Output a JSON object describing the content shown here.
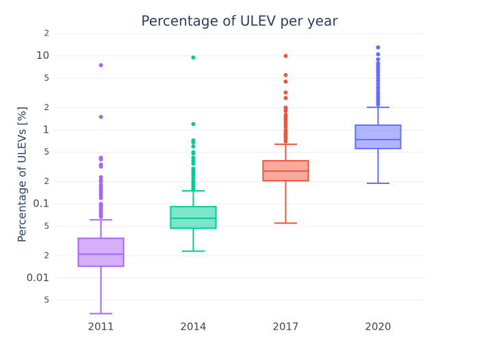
{
  "chart_data": {
    "type": "box",
    "title": "Percentage of ULEV per year",
    "y_label": "Percentage of ULEVs [%]",
    "y_log": true,
    "grid": true,
    "ylim": [
      0.0032,
      27
    ],
    "yticks": [
      {
        "value": 0.005,
        "label": "5"
      },
      0.01,
      {
        "value": 0.02,
        "label": "2"
      },
      {
        "value": 0.05,
        "label": "5"
      },
      0.1,
      {
        "value": 0.2,
        "label": "2"
      },
      {
        "value": 0.5,
        "label": "5"
      },
      1,
      {
        "value": 2,
        "label": "2"
      },
      {
        "value": 5,
        "label": "5"
      },
      10,
      {
        "value": 20,
        "label": "2"
      }
    ],
    "categories": [
      "2011",
      "2014",
      "2017",
      "2020"
    ],
    "boxes": [
      {
        "color": "#ab63fa",
        "lowerfence": 0.0033,
        "q1": 0.0144,
        "median": 0.021,
        "q3": 0.0344,
        "upperfence": 0.061,
        "outliers": [
          7.5,
          1.5,
          0.42,
          0.4,
          0.34,
          0.32,
          0.23,
          0.21,
          0.2,
          0.18,
          0.17,
          0.16,
          0.15,
          0.14,
          0.13,
          0.12,
          0.1,
          0.095,
          0.09,
          0.085,
          0.08,
          0.075,
          0.07,
          0.067
        ]
      },
      {
        "color": "#00cc96",
        "lowerfence": 0.023,
        "q1": 0.047,
        "median": 0.064,
        "q3": 0.092,
        "upperfence": 0.15,
        "outliers": [
          9.5,
          1.2,
          0.72,
          0.68,
          0.6,
          0.5,
          0.48,
          0.42,
          0.38,
          0.35,
          0.3,
          0.28,
          0.26,
          0.24,
          0.22,
          0.2,
          0.19,
          0.18,
          0.17,
          0.16
        ]
      },
      {
        "color": "#ef553b",
        "lowerfence": 0.055,
        "q1": 0.206,
        "median": 0.278,
        "q3": 0.383,
        "upperfence": 0.64,
        "outliers": [
          10,
          5.5,
          4.5,
          3.2,
          2.7,
          2,
          1.9,
          1.8,
          1.6,
          1.5,
          1.4,
          1.3,
          1.2,
          1.1,
          1,
          0.95,
          0.9,
          0.85,
          0.8,
          0.75,
          0.7
        ]
      },
      {
        "color": "#636efa",
        "lowerfence": 0.19,
        "q1": 0.56,
        "median": 0.74,
        "q3": 1.16,
        "upperfence": 2.02,
        "outliers": [
          13,
          10.5,
          9,
          8,
          7.5,
          7,
          6.5,
          6,
          5.5,
          5,
          4.6,
          4.2,
          3.8,
          3.5,
          3.2,
          3,
          2.8,
          2.6,
          2.4,
          2.2
        ]
      }
    ]
  }
}
